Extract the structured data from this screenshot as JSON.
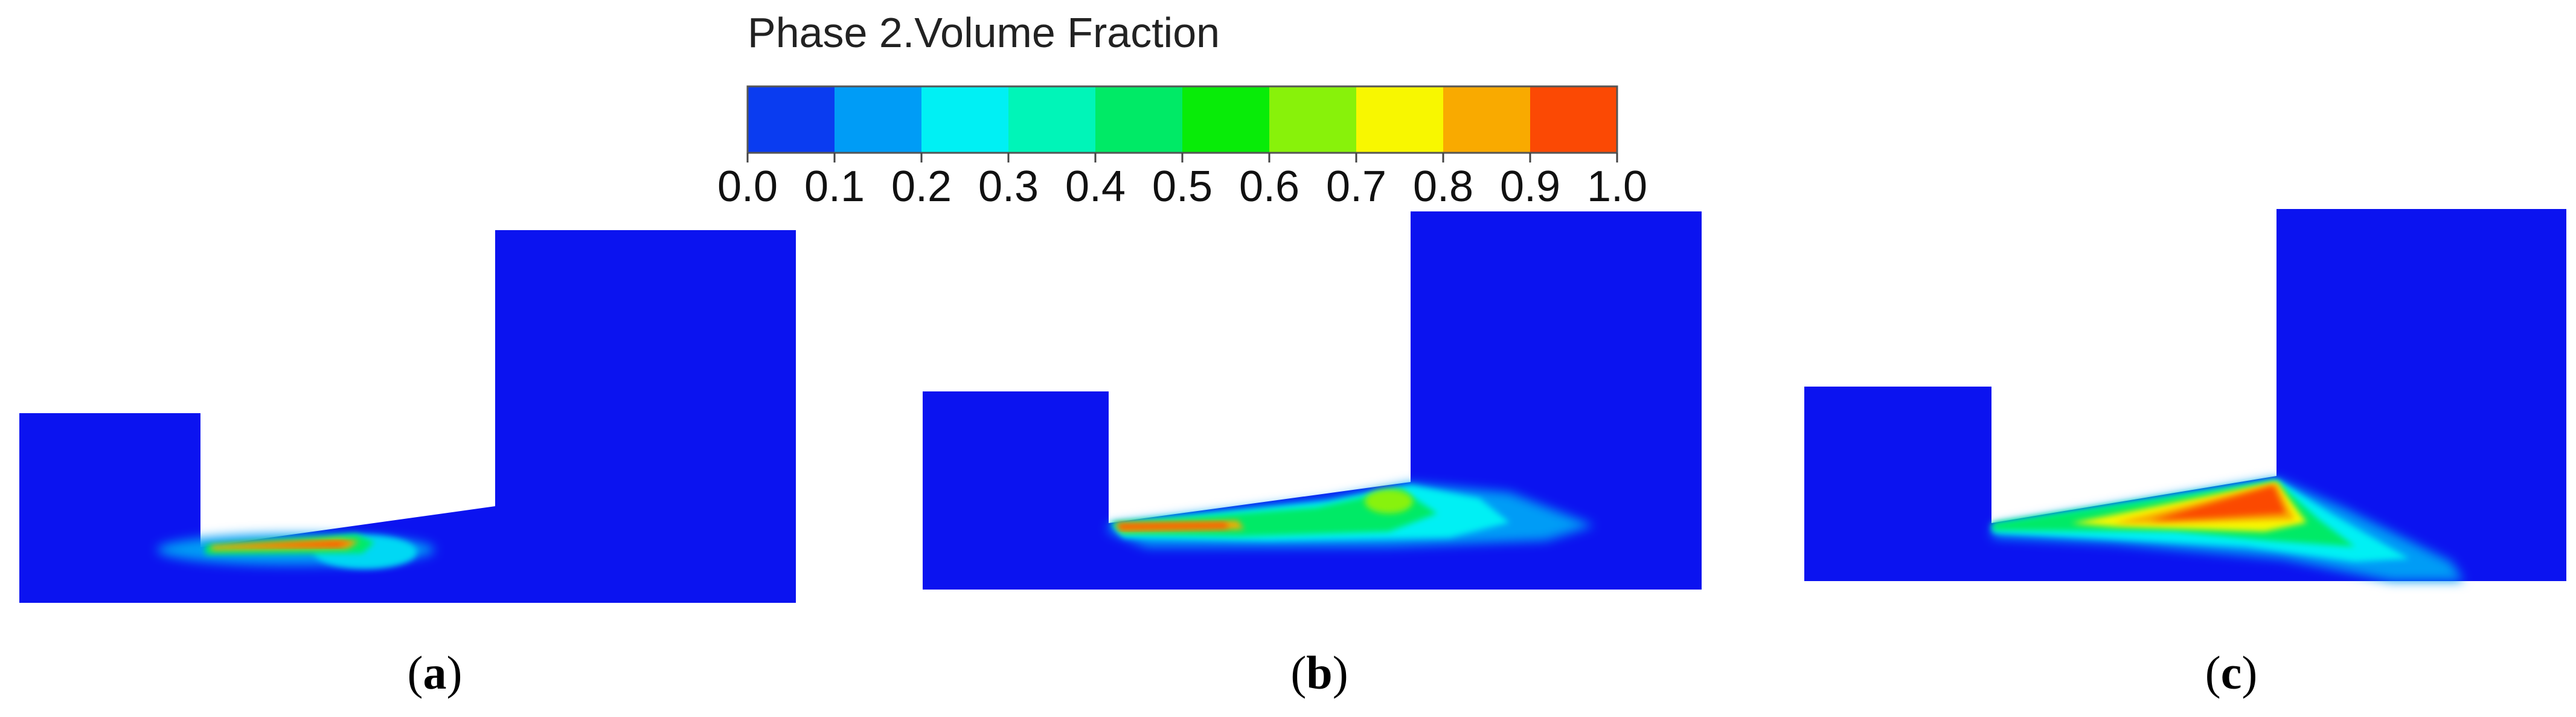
{
  "legend": {
    "title": "Phase 2.Volume Fraction",
    "ticks": [
      "0.0",
      "0.1",
      "0.2",
      "0.3",
      "0.4",
      "0.5",
      "0.6",
      "0.7",
      "0.8",
      "0.9",
      "1.0"
    ],
    "colors": [
      "#0a3cf0",
      "#009cf6",
      "#00f0f4",
      "#00f5b8",
      "#00ea66",
      "#08ec08",
      "#88f20a",
      "#f8f700",
      "#f9aa00",
      "#fb4904"
    ]
  },
  "domain_color": "#0b13f0",
  "panels": [
    {
      "open": "(",
      "letter": "a",
      "close": ")"
    },
    {
      "open": "(",
      "letter": "b",
      "close": ")"
    },
    {
      "open": "(",
      "letter": "c",
      "close": ")"
    }
  ]
}
